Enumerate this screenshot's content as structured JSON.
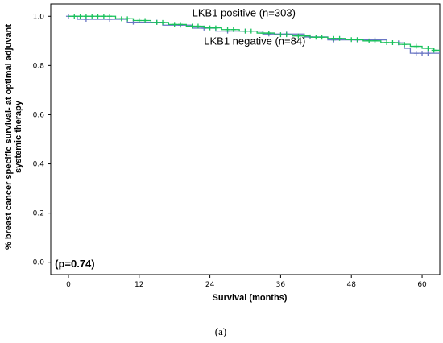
{
  "chart_data": {
    "type": "line",
    "title": "",
    "xlabel": "Survival (months)",
    "ylabel_line1": "% breast cancer specific survival- at optimal adjuvant",
    "ylabel_line2": "systemic therapy",
    "xlim": [
      -3,
      63
    ],
    "ylim": [
      -0.05,
      1.05
    ],
    "xticks": [
      0,
      12,
      24,
      36,
      48,
      60
    ],
    "yticks": [
      0.0,
      0.2,
      0.4,
      0.6,
      0.8,
      1.0
    ],
    "xtick_labels": [
      "0",
      "12",
      "24",
      "36",
      "48",
      "60"
    ],
    "ytick_labels": [
      "0.0",
      "0.2",
      "0.4",
      "0.6",
      "0.8",
      "1.0"
    ],
    "grid": false,
    "series": [
      {
        "name": "LKB1 positive (n=303)",
        "color": "#18c15b",
        "steps": [
          [
            0,
            1.0
          ],
          [
            8,
            0.99
          ],
          [
            11,
            0.983
          ],
          [
            14,
            0.975
          ],
          [
            17,
            0.967
          ],
          [
            20,
            0.96
          ],
          [
            23,
            0.953
          ],
          [
            26,
            0.946
          ],
          [
            29,
            0.94
          ],
          [
            32,
            0.932
          ],
          [
            35,
            0.925
          ],
          [
            38,
            0.92
          ],
          [
            41,
            0.915
          ],
          [
            44,
            0.91
          ],
          [
            47,
            0.905
          ],
          [
            50,
            0.9
          ],
          [
            53,
            0.893
          ],
          [
            56,
            0.886
          ],
          [
            58,
            0.878
          ],
          [
            60,
            0.87
          ],
          [
            62,
            0.862
          ],
          [
            63,
            0.862
          ]
        ],
        "censor_x": [
          1,
          2,
          3,
          4,
          5,
          6,
          7,
          9,
          10,
          12,
          13,
          15,
          16,
          18,
          19,
          21,
          22,
          24,
          25,
          27,
          28,
          30,
          31,
          33,
          34,
          36,
          37,
          39,
          40,
          42,
          43,
          45,
          46,
          48,
          49,
          51,
          52,
          54,
          55,
          57,
          59,
          61,
          62
        ]
      },
      {
        "name": "LKB1 negative (n=84)",
        "color": "#6a76c4",
        "steps": [
          [
            0,
            1.0
          ],
          [
            1.5,
            0.988
          ],
          [
            10,
            0.976
          ],
          [
            16,
            0.964
          ],
          [
            21,
            0.952
          ],
          [
            25,
            0.94
          ],
          [
            33,
            0.928
          ],
          [
            40,
            0.916
          ],
          [
            44,
            0.904
          ],
          [
            54,
            0.892
          ],
          [
            57,
            0.87
          ],
          [
            58,
            0.85
          ],
          [
            63,
            0.85
          ]
        ],
        "censor_x": [
          0,
          3,
          7,
          11,
          15,
          19,
          23,
          27,
          30,
          34,
          37,
          41,
          45,
          49,
          52,
          56,
          59,
          60,
          61
        ]
      }
    ],
    "annotations": [
      {
        "text": "LKB1 positive (n=303)",
        "x": 21,
        "y": 1.0
      },
      {
        "text": "LKB1 negative (n=84)",
        "x": 23,
        "y": 0.885
      },
      {
        "text": "(p=0.74)",
        "x": -2.3,
        "y": -0.02
      }
    ]
  },
  "caption": "(a)"
}
